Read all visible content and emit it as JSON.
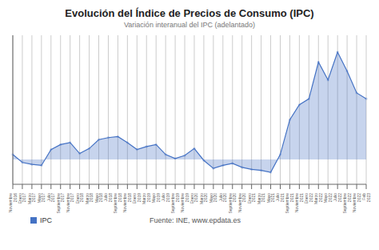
{
  "chart_data": {
    "type": "area",
    "title": "Evolución del Índice de Precios de Consumo (IPC)",
    "subtitle": "Variación interanual del IPC (adelantado)",
    "annotations": [
      "Fuente: INE, www.epdata.es"
    ],
    "categories": [
      "Noviembre\n2016",
      "Enero\n2017",
      "Marzo\n2017",
      "Mayo\n2017",
      "Julio\n2017",
      "Septiembre\n2017",
      "Noviembre\n2017",
      "Enero\n2018",
      "Marzo\n2018",
      "Mayo\n2018",
      "Julio\n2018",
      "Septiembre\n2018",
      "Noviembre\n2018",
      "Enero\n2019",
      "Marzo\n2019",
      "Mayo\n2019",
      "Julio\n2019",
      "Septiembre\n2019",
      "Noviembre\n2019",
      "Enero\n2020",
      "Marzo\n2020",
      "Mayo\n2020",
      "Julio\n2020",
      "Septiembre\n2020",
      "Noviembre\n2020",
      "Enero\n2021",
      "Marzo\n2021",
      "Mayo\n2021",
      "Julio\n2021",
      "Septiembre\n2021",
      "Noviembre\n2021",
      "Enero\n2022",
      "Marzo\n2022",
      "Mayo\n2022",
      "Julio\n2022",
      "Septiembre\n2022",
      "Noviembre\n2022",
      "Feb\n2023"
    ],
    "series": [
      {
        "name": "IPC",
        "color": "#4472C4",
        "marker": "circle",
        "values": [
          0.5,
          -0.3,
          -0.5,
          -0.6,
          1.0,
          1.5,
          1.7,
          0.6,
          1.1,
          2.0,
          2.2,
          2.3,
          1.7,
          1.0,
          1.3,
          1.5,
          0.5,
          0.1,
          0.4,
          1.1,
          -0.1,
          -0.9,
          -0.6,
          -0.4,
          -0.8,
          -1.0,
          -1.1,
          -1.3,
          0.5,
          4.0,
          5.5,
          6.1,
          9.8,
          8.0,
          10.8,
          8.9,
          6.7,
          6.1
        ]
      }
    ],
    "ylim": [
      -2.5,
      12.5
    ],
    "yticks": [],
    "tick_labels": "x",
    "grid": true
  }
}
